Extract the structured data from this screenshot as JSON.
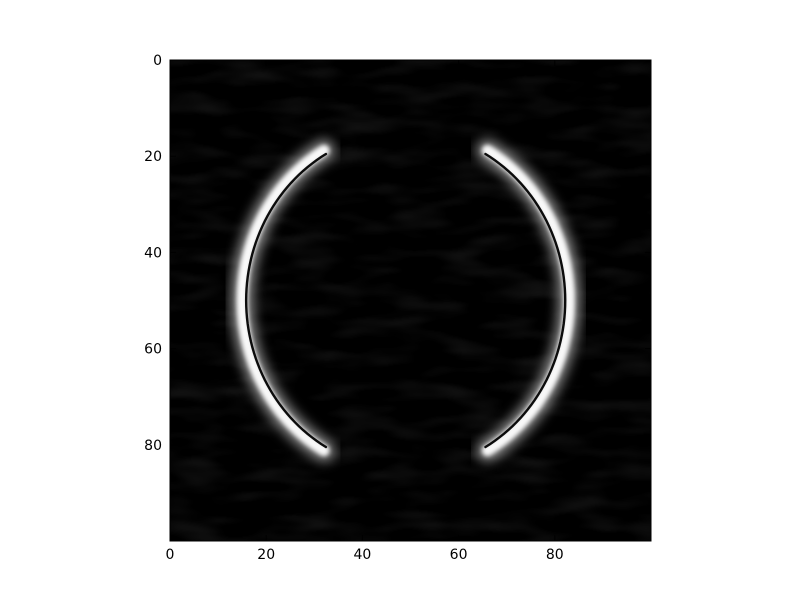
{
  "chart_data": {
    "type": "heatmap",
    "title": "",
    "xlabel": "",
    "ylabel": "",
    "colormap": "gray",
    "background_color": "#000000",
    "xlim": [
      0,
      100
    ],
    "ylim": [
      100,
      0
    ],
    "x_ticks": [
      0,
      20,
      40,
      60,
      80
    ],
    "y_ticks": [
      0,
      20,
      40,
      60,
      80
    ],
    "x_tick_labels": [
      "0",
      "20",
      "40",
      "60",
      "80"
    ],
    "y_tick_labels": [
      "0",
      "20",
      "40",
      "60",
      "80"
    ],
    "image_shape": [
      100,
      100
    ],
    "features": [
      {
        "name": "left-bright-arc",
        "kind": "arc",
        "description_only": false,
        "center": [
          49,
          50
        ],
        "radius_x": 34,
        "radius_y": 36,
        "start_angle_deg": 120,
        "end_angle_deg": 240,
        "peak_intensity": 1.0
      },
      {
        "name": "right-bright-arc",
        "kind": "arc",
        "center": [
          49,
          50
        ],
        "radius_x": 34,
        "radius_y": 36,
        "start_angle_deg": -60,
        "end_angle_deg": 60,
        "peak_intensity": 1.0
      }
    ],
    "grid": false,
    "legend": "none"
  }
}
